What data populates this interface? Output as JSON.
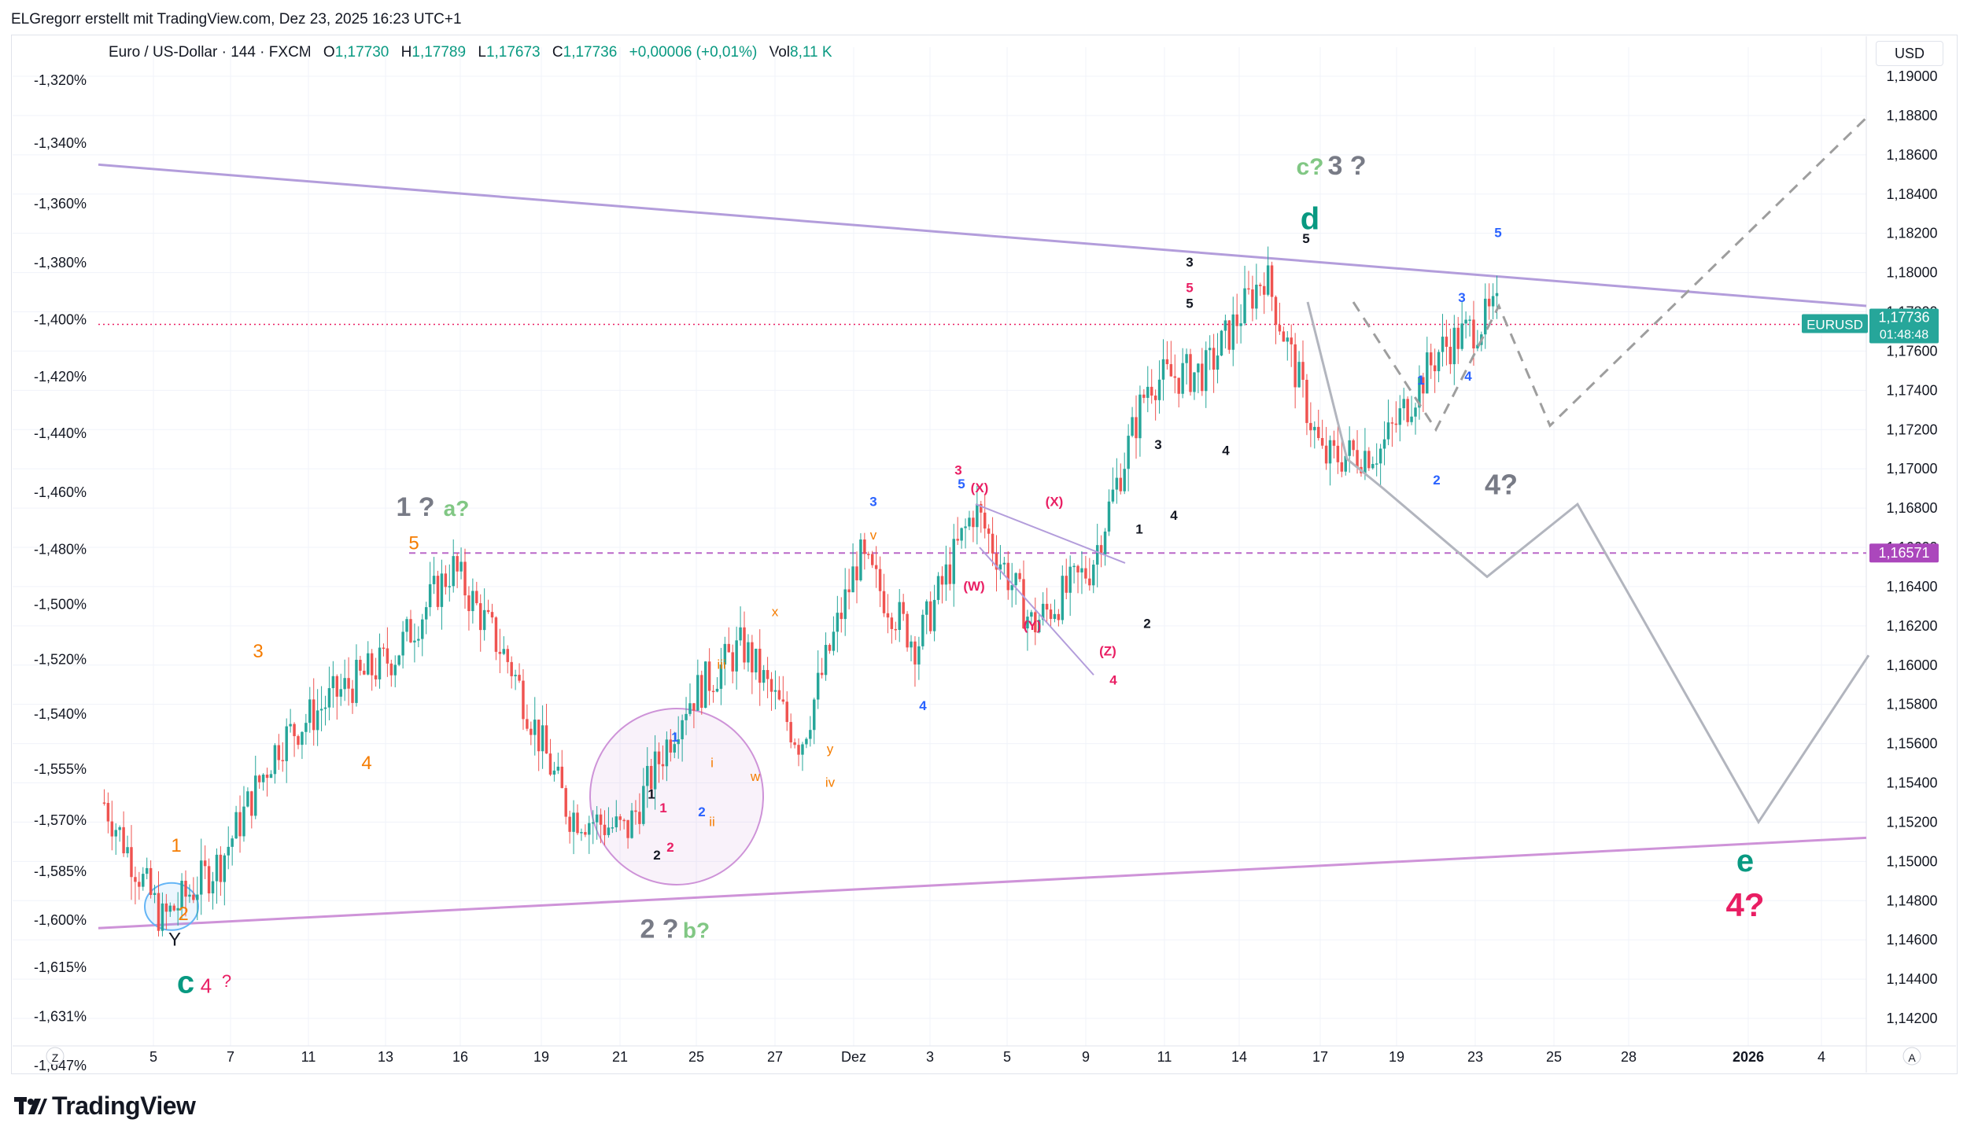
{
  "attribution": "ELGregorr erstellt mit TradingView.com, Dez 23, 2025 16:23 UTC+1",
  "symbol_bar": {
    "name": "Euro / US-Dollar · 144 · FXCM",
    "o_label": "O",
    "o_value": "1,17730",
    "h_label": "H",
    "h_value": "1,17789",
    "l_label": "L",
    "l_value": "1,17673",
    "c_label": "C",
    "c_value": "1,17736",
    "change": "+0,00006 (+0,01%)",
    "vol_label": "Vol",
    "vol_value": "8,11 K"
  },
  "currency": "USD",
  "branding": "TradingView",
  "colors": {
    "up": "#089981",
    "down": "#f23645",
    "up_candle": "#26a69a",
    "down_candle": "#ef5350",
    "trendline": "#ce93d8",
    "upper_trend": "#b39ddb",
    "level_dashed": "#ba68c8",
    "projection": "#b2b5be",
    "price_tag": "#26a69a",
    "level_tag": "#ab47bc",
    "orange": "#f57c00",
    "green": "#089981",
    "pink": "#e91e63",
    "gray": "#787b86",
    "blue": "#2962ff",
    "lightgreen": "#81c784",
    "black": "#131722"
  },
  "chart_data": {
    "type": "candlestick",
    "symbol": "EURUSD",
    "timeframe": "144",
    "y_right_ticks": [
      "1,19000",
      "1,18800",
      "1,18600",
      "1,18400",
      "1,18200",
      "1,18000",
      "1,17800",
      "1,17600",
      "1,17400",
      "1,17200",
      "1,17000",
      "1,16800",
      "1,16600",
      "1,16400",
      "1,16200",
      "1,16000",
      "1,15800",
      "1,15600",
      "1,15400",
      "1,15200",
      "1,15000",
      "1,14800",
      "1,14600",
      "1,14400",
      "1,14200"
    ],
    "y_right_values": [
      1.19,
      1.188,
      1.186,
      1.184,
      1.182,
      1.18,
      1.178,
      1.176,
      1.174,
      1.172,
      1.17,
      1.168,
      1.166,
      1.164,
      1.162,
      1.16,
      1.158,
      1.156,
      1.154,
      1.152,
      1.15,
      1.148,
      1.146,
      1.144,
      1.142
    ],
    "y_left_ticks": [
      "-1,320%",
      "-1,340%",
      "-1,360%",
      "-1,380%",
      "-1,400%",
      "-1,420%",
      "-1,440%",
      "-1,460%",
      "-1,480%",
      "-1,500%",
      "-1,520%",
      "-1,540%",
      "-1,555%",
      "-1,570%",
      "-1,585%",
      "-1,600%",
      "-1,615%",
      "-1,631%",
      "-1,647%"
    ],
    "y_left_prices": [
      1.1898,
      1.1866,
      1.1835,
      1.1805,
      1.1776,
      1.1747,
      1.1718,
      1.1688,
      1.1659,
      1.1631,
      1.1603,
      1.1575,
      1.1547,
      1.1521,
      1.1495,
      1.147,
      1.1446,
      1.1421,
      1.1396
    ],
    "x_ticks": [
      "Z",
      "5",
      "7",
      "11",
      "13",
      "16",
      "19",
      "21",
      "25",
      "27",
      "Dez",
      "3",
      "5",
      "9",
      "11",
      "14",
      "17",
      "19",
      "23",
      "25",
      "28",
      "2026",
      "4",
      "A"
    ],
    "current_price": {
      "label": "EURUSD",
      "value": "1,17736",
      "countdown": "01:48:48",
      "price": 1.17736
    },
    "level_line": {
      "value": "1,16571",
      "price": 1.16571
    },
    "ohlc_series_note": "Approx. 144-minute candles, Nov 3 – Dec 23 2025",
    "series_keypoints": [
      {
        "t": "Nov 3",
        "price": 1.153
      },
      {
        "t": "Nov 5",
        "price": 1.147
      },
      {
        "t": "Nov 6",
        "price": 1.15
      },
      {
        "t": "Nov 10",
        "price": 1.156
      },
      {
        "t": "Nov 11",
        "price": 1.1585
      },
      {
        "t": "Nov 13",
        "price": 1.1605
      },
      {
        "t": "Nov 14",
        "price": 1.165
      },
      {
        "t": "Nov 17",
        "price": 1.16
      },
      {
        "t": "Nov 20",
        "price": 1.1525
      },
      {
        "t": "Nov 21",
        "price": 1.1515
      },
      {
        "t": "Nov 25",
        "price": 1.158
      },
      {
        "t": "Nov 27",
        "price": 1.161
      },
      {
        "t": "Nov 28",
        "price": 1.156
      },
      {
        "t": "Dez 1",
        "price": 1.1655
      },
      {
        "t": "Dez 2",
        "price": 1.161
      },
      {
        "t": "Dez 4",
        "price": 1.168
      },
      {
        "t": "Dez 9",
        "price": 1.162
      },
      {
        "t": "Dez 10",
        "price": 1.165
      },
      {
        "t": "Dez 11",
        "price": 1.1745
      },
      {
        "t": "Dez 15",
        "price": 1.175
      },
      {
        "t": "Dez 16",
        "price": 1.18
      },
      {
        "t": "Dez 17",
        "price": 1.1705
      },
      {
        "t": "Dez 19",
        "price": 1.171
      },
      {
        "t": "Dez 22",
        "price": 1.176
      },
      {
        "t": "Dez 23",
        "price": 1.178
      }
    ],
    "annotations": [
      {
        "text": "c?",
        "color": "lightgreen"
      },
      {
        "text": "3 ?",
        "color": "gray"
      },
      {
        "text": "d",
        "color": "green"
      },
      {
        "text": "1 ?",
        "color": "gray"
      },
      {
        "text": "a?",
        "color": "lightgreen"
      },
      {
        "text": "2 ?",
        "color": "gray"
      },
      {
        "text": "b?",
        "color": "lightgreen"
      },
      {
        "text": "4?",
        "color": "gray"
      },
      {
        "text": "e",
        "color": "green"
      },
      {
        "text": "4?",
        "color": "pink"
      },
      {
        "text": "c",
        "color": "green"
      },
      {
        "text": "4",
        "color": "pink"
      },
      {
        "text": "?",
        "color": "pink"
      },
      {
        "text": "Y",
        "color": "black"
      }
    ]
  },
  "labels": {
    "orange": [
      "1",
      "2",
      "3",
      "4",
      "5",
      "x",
      "y",
      "w",
      "iii",
      "i",
      "ii",
      "iv",
      "v"
    ],
    "blue": [
      "1",
      "2",
      "3",
      "4",
      "5"
    ],
    "black": [
      "1",
      "2",
      "3",
      "4",
      "5"
    ],
    "pink": [
      "1",
      "2",
      "3",
      "4",
      "5",
      "(X)",
      "(W)",
      "(Y)",
      "(Z)"
    ]
  }
}
